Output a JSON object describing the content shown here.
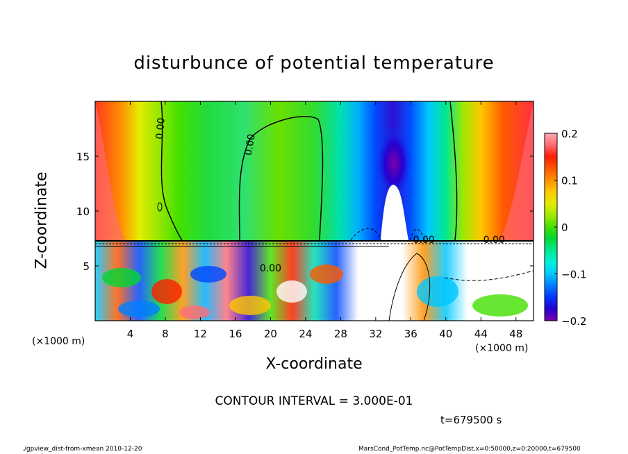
{
  "chart_data": {
    "type": "heatmap",
    "title": "disturbunce of potential temperature",
    "xlabel": "X-coordinate",
    "ylabel": "Z-coordinate",
    "x_unit_label": "(×1000 m)",
    "xlim": [
      0,
      50
    ],
    "ylim": [
      0,
      20
    ],
    "x_ticks": [
      4,
      8,
      12,
      16,
      20,
      24,
      28,
      32,
      36,
      40,
      44,
      48
    ],
    "x_tick_labels": [
      "4",
      "8",
      "12",
      "16",
      "20",
      "24",
      "28",
      "32",
      "36",
      "40",
      "44",
      "48"
    ],
    "y_ticks": [
      5,
      10,
      15
    ],
    "y_tick_labels": [
      "5",
      "10",
      "15"
    ],
    "colorbar": {
      "min": -0.2,
      "max": 0.2,
      "ticks": [
        0.2,
        0.1,
        0,
        -0.1,
        -0.2
      ],
      "tick_labels": [
        "0.2",
        "0.1",
        "0",
        "−0.1",
        "−0.2"
      ],
      "colors": [
        "#7a00a8",
        "#2600d0",
        "#0035ff",
        "#0080ff",
        "#00c8ff",
        "#00f0e0",
        "#00e890",
        "#00d832",
        "#44e000",
        "#a0e800",
        "#e4ec00",
        "#ffc800",
        "#ff9000",
        "#ff5a00",
        "#ff1e00",
        "#ff6e78",
        "#ffaab0"
      ]
    },
    "contour_labels": [
      "0.00",
      "0.00",
      "0.00",
      "0.00",
      "0.00"
    ],
    "contour_interval_text": "CONTOUR INTERVAL = 3.000E-01",
    "time_text": "t=679500 s"
  },
  "footer": {
    "left": "./gpview_dist-from-xmean  2010-12-20",
    "right": "MarsCond_PotTemp.nc@PotTempDist,x=0:50000,z=0:20000,t=679500"
  }
}
